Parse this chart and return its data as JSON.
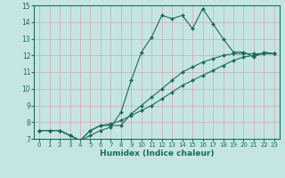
{
  "title": "",
  "xlabel": "Humidex (Indice chaleur)",
  "bg_color": "#c5e5e5",
  "grid_color": "#d4a8a8",
  "line_color": "#1a6b5a",
  "xlim": [
    -0.5,
    23.5
  ],
  "ylim": [
    7,
    15
  ],
  "xticks": [
    0,
    1,
    2,
    3,
    4,
    5,
    6,
    7,
    8,
    9,
    10,
    11,
    12,
    13,
    14,
    15,
    16,
    17,
    18,
    19,
    20,
    21,
    22,
    23
  ],
  "yticks": [
    7,
    8,
    9,
    10,
    11,
    12,
    13,
    14,
    15
  ],
  "lines": [
    {
      "x": [
        0,
        1,
        2,
        3,
        4,
        5,
        6,
        7,
        8,
        9,
        10,
        11,
        12,
        13,
        14,
        15,
        16,
        17,
        18,
        19,
        20,
        21,
        22,
        23
      ],
      "y": [
        7.5,
        7.5,
        7.5,
        7.2,
        6.9,
        7.2,
        7.5,
        7.7,
        8.6,
        10.5,
        12.2,
        13.1,
        14.4,
        14.2,
        14.4,
        13.6,
        14.8,
        13.9,
        13.0,
        12.2,
        12.2,
        11.9,
        12.2,
        12.1
      ]
    },
    {
      "x": [
        0,
        1,
        2,
        3,
        4,
        5,
        6,
        7,
        8,
        9,
        10,
        11,
        12,
        13,
        14,
        15,
        16,
        17,
        18,
        19,
        20,
        21,
        22,
        23
      ],
      "y": [
        7.5,
        7.5,
        7.5,
        7.2,
        6.9,
        7.5,
        7.8,
        7.8,
        7.8,
        8.5,
        9.0,
        9.5,
        10.0,
        10.5,
        11.0,
        11.3,
        11.6,
        11.8,
        12.0,
        12.1,
        12.1,
        12.1,
        12.1,
        12.1
      ]
    },
    {
      "x": [
        0,
        1,
        2,
        3,
        4,
        5,
        6,
        7,
        8,
        9,
        10,
        11,
        12,
        13,
        14,
        15,
        16,
        17,
        18,
        19,
        20,
        21,
        22,
        23
      ],
      "y": [
        7.5,
        7.5,
        7.5,
        7.2,
        6.9,
        7.5,
        7.8,
        7.9,
        8.1,
        8.4,
        8.7,
        9.0,
        9.4,
        9.8,
        10.2,
        10.5,
        10.8,
        11.1,
        11.4,
        11.7,
        11.9,
        12.0,
        12.1,
        12.1
      ]
    }
  ]
}
